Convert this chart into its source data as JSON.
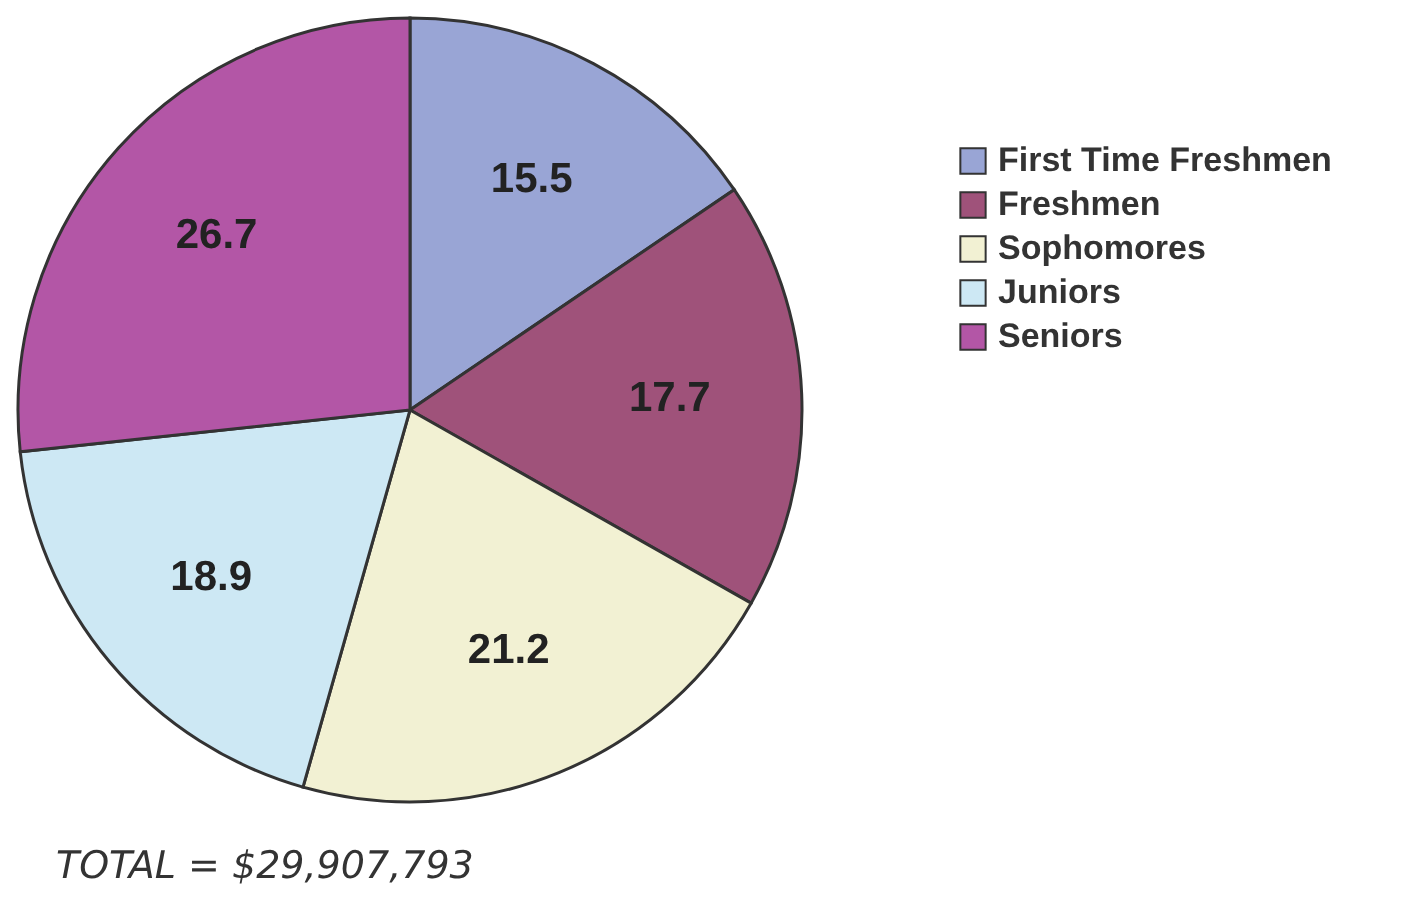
{
  "chart_data": {
    "type": "pie",
    "categories": [
      "First Time Freshmen",
      "Freshmen",
      "Sophomores",
      "Juniors",
      "Seniors"
    ],
    "values": [
      15.5,
      17.7,
      21.2,
      18.9,
      26.7
    ],
    "colors": [
      "#99a5d5",
      "#9f527a",
      "#f2f1d3",
      "#cde8f4",
      "#b356a6"
    ],
    "data_labels": true,
    "legend": "right",
    "annotations": [
      "TOTAL = $29,907,793"
    ]
  }
}
